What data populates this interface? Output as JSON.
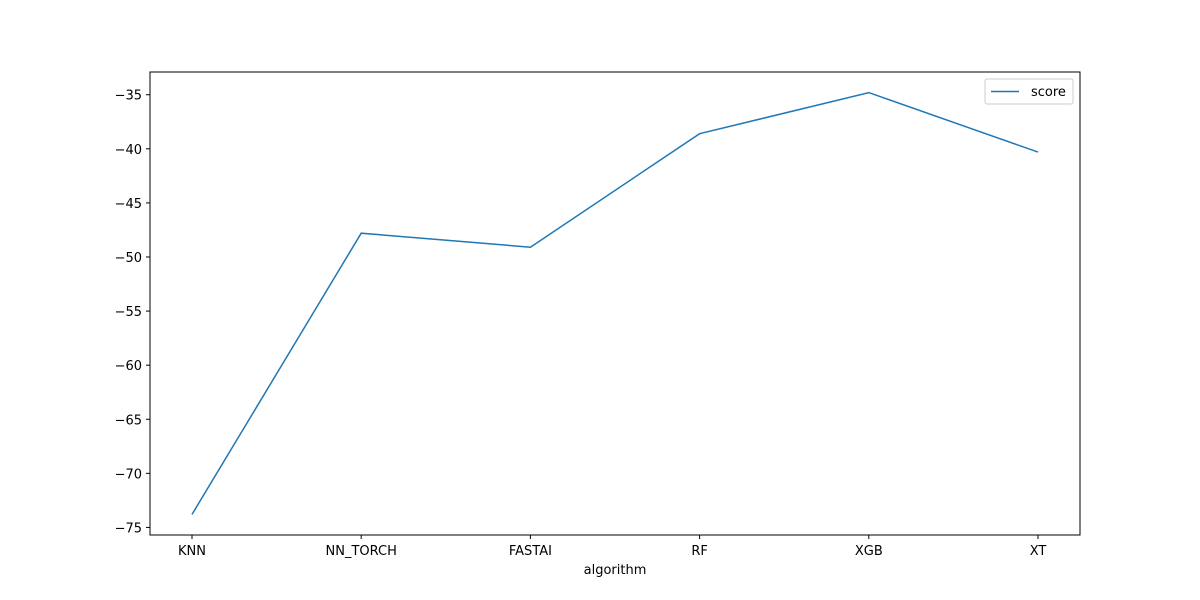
{
  "chart_data": {
    "type": "line",
    "title": "",
    "xlabel": "algorithm",
    "ylabel": "",
    "categories": [
      "KNN",
      "NN_TORCH",
      "FASTAI",
      "RF",
      "XGB",
      "XT"
    ],
    "series": [
      {
        "name": "score",
        "values": [
          -73.8,
          -47.8,
          -49.1,
          -38.6,
          -34.8,
          -40.3
        ],
        "color": "#1f77b4"
      }
    ],
    "ylim": [
      -75.7,
      -32.9
    ],
    "yticks": [
      -75,
      -70,
      -65,
      -60,
      -55,
      -50,
      -45,
      -40,
      -35
    ],
    "ytick_labels": [
      "−75",
      "−70",
      "−65",
      "−60",
      "−55",
      "−50",
      "−45",
      "−40",
      "−35"
    ],
    "grid": false,
    "legend": {
      "position": "top-right"
    }
  }
}
